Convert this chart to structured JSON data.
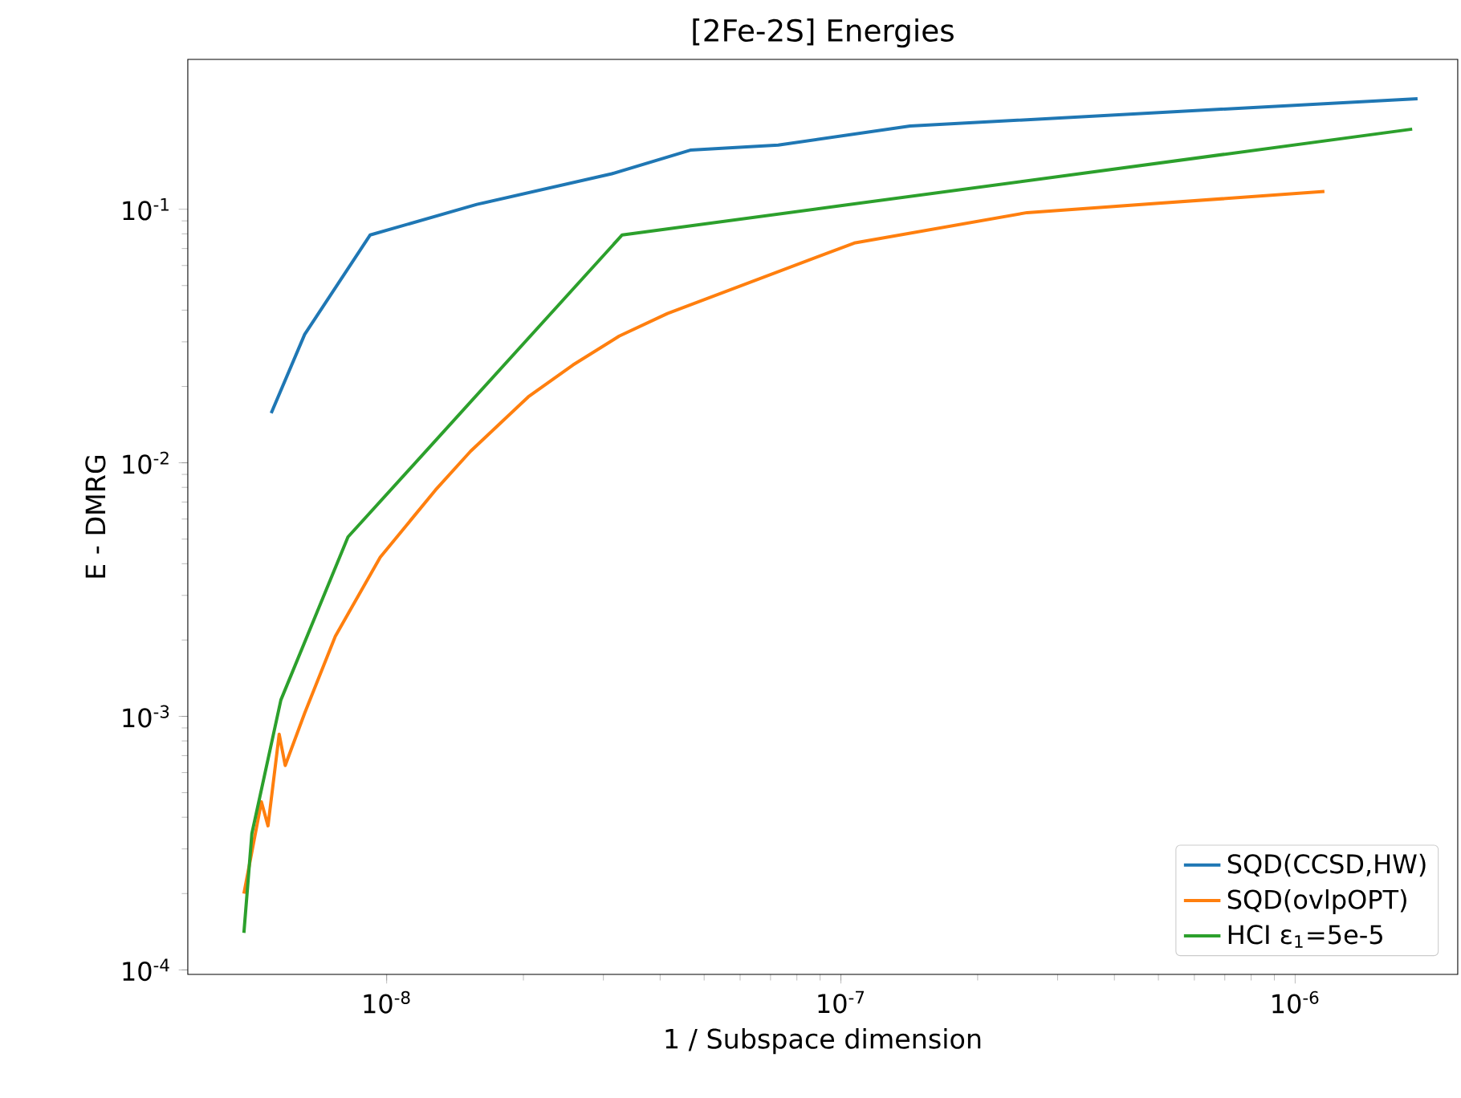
{
  "chart_data": {
    "type": "line",
    "title": "[2Fe-2S] Energies",
    "xlabel": "1 / Subspace dimension",
    "ylabel": "E - DMRG",
    "log": "xy",
    "grid": false,
    "legend": "bottom right",
    "marker": "none",
    "line_style": "solid",
    "xlim": [
      3.65e-09,
      2.28e-06
    ],
    "ylim": [
      9.6e-05,
      0.39
    ],
    "xticks": [
      {
        "value": 1e-08,
        "label": "10$^{-8}$"
      },
      {
        "value": 1e-07,
        "label": "10$^{-7}$"
      },
      {
        "value": 1e-06,
        "label": "10$^{-6}$"
      }
    ],
    "yticks": [
      {
        "value": 0.0001,
        "label": "10$^{-4}$"
      },
      {
        "value": 0.001,
        "label": "10$^{-3}$"
      },
      {
        "value": 0.01,
        "label": "10$^{-2}$"
      },
      {
        "value": 0.1,
        "label": "10$^{-1}$"
      }
    ],
    "series": [
      {
        "name": "SQD(CCSD,HW)",
        "color": "#1f77b4",
        "x": [
          5.57e-09,
          6.6e-09,
          9.2e-09,
          1.58e-08,
          3.13e-08,
          4.66e-08,
          7.28e-08,
          1.42e-07,
          1.86e-06
        ],
        "values": [
          0.0157,
          0.0321,
          0.0792,
          0.1045,
          0.138,
          0.171,
          0.179,
          0.213,
          0.273
        ]
      },
      {
        "name": "SQD(ovlpOPT)",
        "color": "#ff7f0e",
        "x": [
          4.85e-09,
          5.3e-09,
          5.48e-09,
          5.8e-09,
          5.98e-09,
          6.6e-09,
          7.71e-09,
          9.68e-09,
          1.28e-08,
          1.53e-08,
          2.05e-08,
          2.57e-08,
          3.25e-08,
          4.15e-08,
          1.07e-07,
          2.57e-07,
          1.16e-06
        ],
        "values": [
          0.0002,
          0.00046,
          0.00037,
          0.00085,
          0.00064,
          0.00103,
          0.00207,
          0.00424,
          0.0078,
          0.0111,
          0.0182,
          0.0243,
          0.0316,
          0.0388,
          0.0736,
          0.097,
          0.1175
        ]
      },
      {
        "name": "HCI ε$_{1}$=5e-5",
        "color": "#2ca02c",
        "x": [
          4.85e-09,
          5.05e-09,
          5.85e-09,
          8.22e-09,
          3.3e-08,
          1.81e-06
        ],
        "values": [
          0.00014,
          0.000345,
          0.00116,
          0.0051,
          0.0792,
          0.207
        ]
      }
    ]
  }
}
